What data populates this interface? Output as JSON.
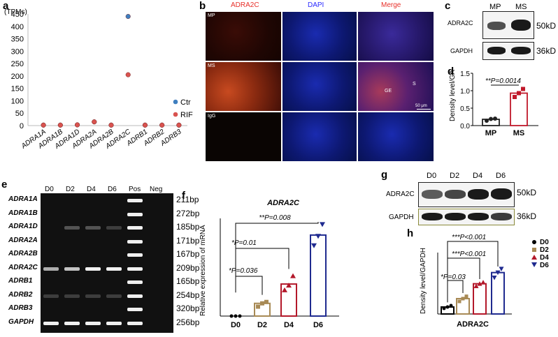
{
  "panels": {
    "a": "a",
    "b": "b",
    "c": "c",
    "d": "d",
    "e": "e",
    "f": "f",
    "g": "g",
    "h": "h"
  },
  "panel_a": {
    "unit": "(TPMs)",
    "legend": [
      "Ctr",
      "RIF"
    ],
    "colors": {
      "Ctr": "#3f7fbf",
      "RIF": "#d9534f"
    },
    "yticks": [
      "0",
      "50",
      "100",
      "150",
      "200",
      "250",
      "300",
      "350",
      "400",
      "450"
    ],
    "categories": [
      "ADRA1A",
      "ADRA1B",
      "ADRA1D",
      "ADRA2A",
      "ADRA2B",
      "ADRA2C",
      "ADRB1",
      "ADRB2",
      "ADRB3"
    ]
  },
  "panel_b": {
    "columns": [
      "ADRA2C",
      "DAPI",
      "Merge"
    ],
    "rows": [
      "MP",
      "MS",
      "IgG"
    ],
    "annot_ge": "GE",
    "annot_s": "S",
    "scale": "50 μm",
    "column_colors": [
      "#e8302a",
      "#2a2aff",
      "#e8302a"
    ]
  },
  "panel_c": {
    "lanes": [
      "MP",
      "MS"
    ],
    "rows": [
      "ADRA2C",
      "GAPDH"
    ],
    "sizes": [
      "50kD",
      "36kD"
    ]
  },
  "panel_d": {
    "pvalue": "**P=0.0014",
    "ylabel": "Density level/GAPDH",
    "yticks": [
      "0.0",
      "0.5",
      "1.0",
      "1.5"
    ],
    "categories": [
      "MP",
      "MS"
    ]
  },
  "panel_e": {
    "lanes": [
      "D0",
      "D2",
      "D4",
      "D6",
      "Pos",
      "Neg"
    ],
    "genes": [
      "ADRA1A",
      "ADRA1B",
      "ADRA1D",
      "ADRA2A",
      "ADRA2B",
      "ADRA2C",
      "ADRB1",
      "ADRB2",
      "ADRB3",
      "GAPDH"
    ],
    "sizes": [
      "211bp",
      "272bp",
      "185bp",
      "171bp",
      "167bp",
      "209bp",
      "165bp",
      "254bp",
      "320bp",
      "256bp"
    ]
  },
  "panel_f": {
    "title": "ADRA2C",
    "ylabel": "Relative expression of mRNA",
    "categories": [
      "D0",
      "D2",
      "D4",
      "D6"
    ],
    "p1": "*P=0.036",
    "p2": "*P=0.01",
    "p3": "**P=0.008"
  },
  "panel_g": {
    "lanes": [
      "D0",
      "D2",
      "D4",
      "D6"
    ],
    "rows": [
      "ADRA2C",
      "GAPDH"
    ],
    "sizes": [
      "50kD",
      "36kD"
    ]
  },
  "panel_h": {
    "ylabel": "Density level/GAPDH",
    "xlabel": "ADRA2C",
    "legend": [
      "D0",
      "D2",
      "D4",
      "D6"
    ],
    "p1": "*P=0.03",
    "p2": "***P<0.001",
    "p3": "***P<0.001"
  },
  "chart_data": [
    {
      "type": "scatter",
      "ylim": [
        0,
        450
      ],
      "categories": [
        "ADRA1A",
        "ADRA1B",
        "ADRA1D",
        "ADRA2A",
        "ADRA2B",
        "ADRA2C",
        "ADRB1",
        "ADRB2",
        "ADRB3"
      ],
      "series": [
        {
          "name": "Ctr",
          "values": [
            2,
            2,
            3,
            15,
            2,
            440,
            2,
            2,
            2
          ]
        },
        {
          "name": "RIF",
          "values": [
            2,
            2,
            3,
            15,
            2,
            205,
            2,
            2,
            2
          ]
        }
      ]
    },
    {
      "type": "bar",
      "categories": [
        "MP",
        "MS"
      ],
      "values": [
        0.18,
        0.93
      ],
      "points": [
        [
          0.14,
          0.19,
          0.2
        ],
        [
          0.82,
          0.93,
          1.05
        ]
      ],
      "ylim": [
        0,
        1.5
      ],
      "colors": [
        "#222222",
        "#c0182a"
      ]
    },
    {
      "type": "bar",
      "categories": [
        "D0",
        "D2",
        "D4",
        "D6"
      ],
      "values": [
        0.0,
        0.27,
        0.68,
        1.72
      ],
      "points": [
        [
          0,
          0,
          0
        ],
        [
          0.2,
          0.27,
          0.3
        ],
        [
          0.55,
          0.65,
          0.85
        ],
        [
          1.5,
          1.7,
          1.95
        ]
      ],
      "ylim": [
        0,
        2.0
      ],
      "colors": [
        "#000000",
        "#a88a55",
        "#b3182a",
        "#1f2a8f"
      ]
    },
    {
      "type": "bar",
      "categories": [
        "D0",
        "D2",
        "D4",
        "D6"
      ],
      "values": [
        0.15,
        0.33,
        0.65,
        0.89
      ],
      "points": [
        [
          0.12,
          0.15,
          0.18
        ],
        [
          0.27,
          0.33,
          0.38
        ],
        [
          0.6,
          0.65,
          0.68
        ],
        [
          0.78,
          0.89,
          0.97
        ]
      ],
      "ylim": [
        0,
        1.2
      ],
      "colors": [
        "#000000",
        "#a88a55",
        "#b3182a",
        "#1f2a8f"
      ]
    }
  ]
}
